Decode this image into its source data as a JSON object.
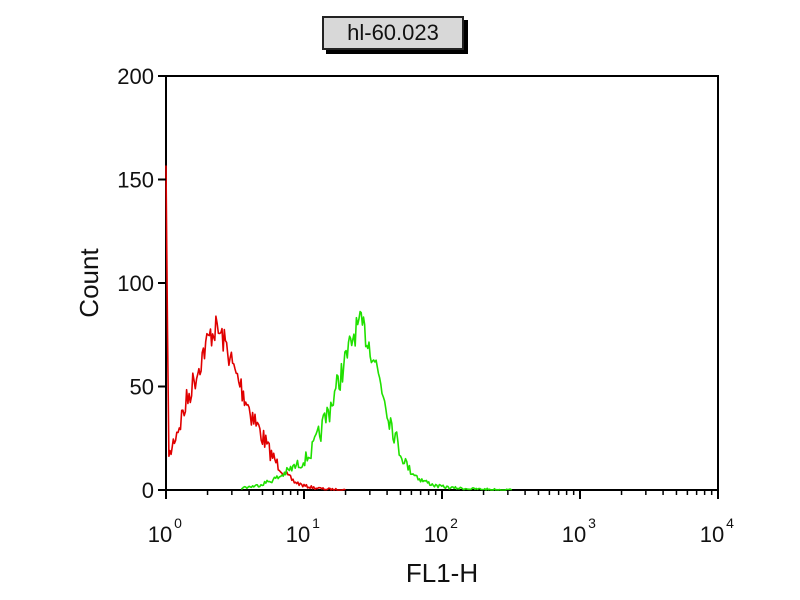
{
  "chart_data": {
    "type": "line",
    "title": "hl-60.023",
    "xlabel": "FL1-H",
    "ylabel": "Count",
    "x_scale": "log",
    "xlim": [
      1,
      10000
    ],
    "ylim": [
      0,
      200
    ],
    "x_ticks": [
      {
        "base": "10",
        "exp": "0",
        "value": 1
      },
      {
        "base": "10",
        "exp": "1",
        "value": 10
      },
      {
        "base": "10",
        "exp": "2",
        "value": 100
      },
      {
        "base": "10",
        "exp": "3",
        "value": 1000
      },
      {
        "base": "10",
        "exp": "4",
        "value": 10000
      }
    ],
    "y_ticks": [
      "0",
      "50",
      "100",
      "150",
      "200"
    ],
    "y_tick_values": [
      0,
      50,
      100,
      150,
      200
    ],
    "grid": false,
    "series": [
      {
        "color": "#e00000",
        "x": [
          1.0,
          1.05,
          1.15,
          1.3,
          1.5,
          1.7,
          1.9,
          2.1,
          2.3,
          2.5,
          2.8,
          3.1,
          3.5,
          4.0,
          4.5,
          5.0,
          5.7,
          6.5,
          7.5,
          8.5,
          10,
          12,
          14,
          17,
          20
        ],
        "y": [
          150,
          15,
          25,
          35,
          48,
          58,
          68,
          75,
          78,
          75,
          68,
          58,
          50,
          40,
          32,
          26,
          18,
          12,
          7,
          4,
          2,
          1,
          0.5,
          0.2,
          0
        ]
      },
      {
        "color": "#20e000",
        "x": [
          3.5,
          4.5,
          5.5,
          6.5,
          8,
          9.5,
          11,
          13,
          15,
          17,
          19,
          21,
          23,
          25,
          27,
          29,
          32,
          36,
          40,
          45,
          50,
          58,
          70,
          90,
          120,
          170,
          250,
          320
        ],
        "y": [
          1,
          2,
          4,
          6,
          10,
          13,
          17,
          27,
          38,
          48,
          58,
          67,
          75,
          80,
          78,
          72,
          65,
          52,
          40,
          28,
          18,
          10,
          5,
          2,
          1,
          0.5,
          0.2,
          0
        ]
      }
    ]
  }
}
